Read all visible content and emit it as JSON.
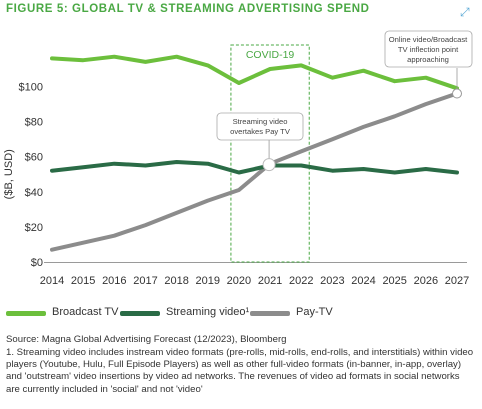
{
  "figure": {
    "title": "FIGURE 5: GLOBAL TV & STREAMING ADVERTISING SPEND"
  },
  "icons": {
    "expand": "expand-icon"
  },
  "colors": {
    "broadcast": "#6cbf3c",
    "streaming": "#2a6b46",
    "paytv": "#8c8c8c",
    "title": "#4aa844",
    "covid": "#4aa844"
  },
  "chart_data": {
    "type": "line",
    "title": "FIGURE 5: GLOBAL TV & STREAMING ADVERTISING SPEND",
    "ylabel": "($B, USD)",
    "xlabel": "",
    "x": [
      "2014",
      "2015",
      "2016",
      "2017",
      "2018",
      "2019",
      "2020",
      "2021",
      "2022",
      "2023",
      "2024",
      "2025",
      "2026",
      "2027"
    ],
    "y_ticks": [
      "$0",
      "$20",
      "$40",
      "$60",
      "$80",
      "$100"
    ],
    "ylim": [
      0,
      120
    ],
    "grid": false,
    "series": [
      {
        "name": "Broadcast TV",
        "values": [
          116,
          115,
          117,
          114,
          117,
          112,
          102,
          110,
          112,
          105,
          109,
          103,
          105,
          99
        ]
      },
      {
        "name": "Streaming video¹",
        "values": [
          52,
          54,
          56,
          55,
          57,
          56,
          51,
          55,
          55,
          52,
          53,
          51,
          53,
          51
        ]
      },
      {
        "name": "Pay-TV",
        "values": [
          7,
          11,
          15,
          21,
          28,
          35,
          41,
          56,
          63,
          70,
          77,
          83,
          90,
          96
        ]
      }
    ],
    "annotations": {
      "covid_label": "COVID-19",
      "streaming_overtake": [
        "Streaming video",
        "overtakes Pay TV"
      ],
      "inflection": [
        "Online video/Broadcast",
        "TV inflection point",
        "approaching"
      ]
    },
    "legend_position": "bottom"
  },
  "legend": [
    {
      "label": "Broadcast TV"
    },
    {
      "label": "Streaming video¹"
    },
    {
      "label": "Pay-TV"
    }
  ],
  "source": "Source: Magna Global Advertising Forecast (12/2023), Bloomberg",
  "footnote": "1. Streaming video includes instream video formats (pre-rolls, mid-rolls, end-rolls, and interstitials) within video players (Youtube, Hulu, Full Episode Players) as well as other full-video formats (in-banner, in-app, overlay) and 'outstream' video insertions by video ad networks. The revenues of video ad formats in social networks are currently included in 'social' and not 'video'"
}
